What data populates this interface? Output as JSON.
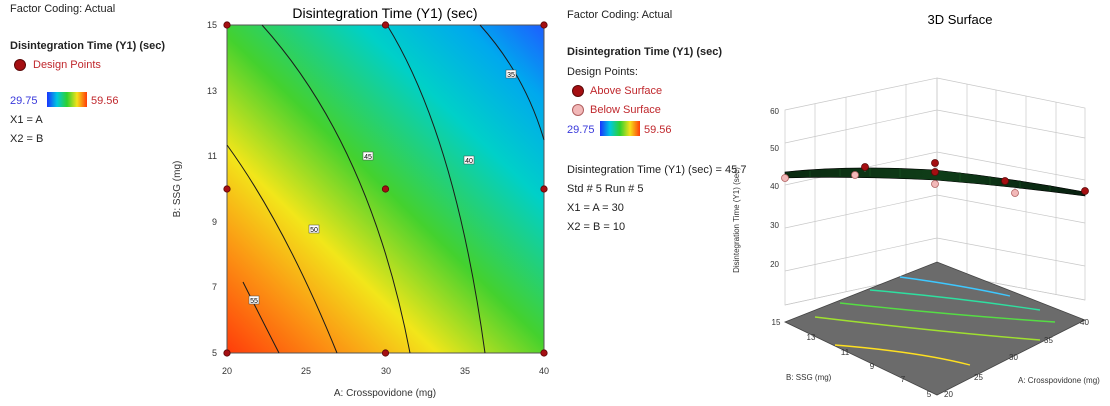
{
  "left_panel": {
    "factor_coding": "Factor Coding: Actual",
    "response": "Disintegration Time (Y1) (sec)",
    "design_points": "Design Points",
    "scale_min": "29.75",
    "scale_max": "59.56",
    "x1": "X1 = A",
    "x2": "X2 = B"
  },
  "right_panel": {
    "factor_coding": "Factor Coding: Actual",
    "response": "Disintegration Time (Y1) (sec)",
    "design_points": "Design Points:",
    "above": "Above Surface",
    "below": "Below Surface",
    "scale_min": "29.75",
    "scale_max": "59.56",
    "readout": "Disintegration Time (Y1) (sec) = 45.7",
    "std_run": "Std # 5 Run # 5",
    "x1": "X1 = A = 30",
    "x2": "X2 = B = 10"
  },
  "colors": {
    "low": "#1a33ff",
    "mid": "#2ed12e",
    "high": "#ff3c0a",
    "design_point": "#a50f12",
    "below_point": "#f2b8b8"
  },
  "chart_data": [
    {
      "type": "contour",
      "title": "Disintegration Time (Y1) (sec)",
      "xlabel": "A: Crosspovidone (mg)",
      "ylabel": "B: SSG (mg)",
      "xlim": [
        20,
        40
      ],
      "ylim": [
        5,
        15
      ],
      "xticks": [
        "20",
        "25",
        "30",
        "35",
        "40"
      ],
      "yticks": [
        "5",
        "7",
        "9",
        "11",
        "13",
        "15"
      ],
      "contour_levels": [
        "55",
        "50",
        "45",
        "40",
        "35"
      ],
      "design_points": [
        {
          "x": 20,
          "y": 5
        },
        {
          "x": 30,
          "y": 5
        },
        {
          "x": 40,
          "y": 5
        },
        {
          "x": 20,
          "y": 10
        },
        {
          "x": 30,
          "y": 10
        },
        {
          "x": 40,
          "y": 10
        },
        {
          "x": 20,
          "y": 15
        },
        {
          "x": 30,
          "y": 15
        },
        {
          "x": 40,
          "y": 15
        }
      ]
    },
    {
      "type": "surface",
      "title": "3D Surface",
      "xlabel": "A: Crosspovidone (mg)",
      "ylabel": "B: SSG (mg)",
      "zlabel": "Disintegration Time (Y1) (sec)",
      "zticks": [
        "20",
        "30",
        "40",
        "50",
        "60"
      ],
      "xticks": [
        "20",
        "25",
        "30",
        "35",
        "40"
      ],
      "yticks": [
        "5",
        "7",
        "9",
        "11",
        "13",
        "15"
      ]
    }
  ]
}
